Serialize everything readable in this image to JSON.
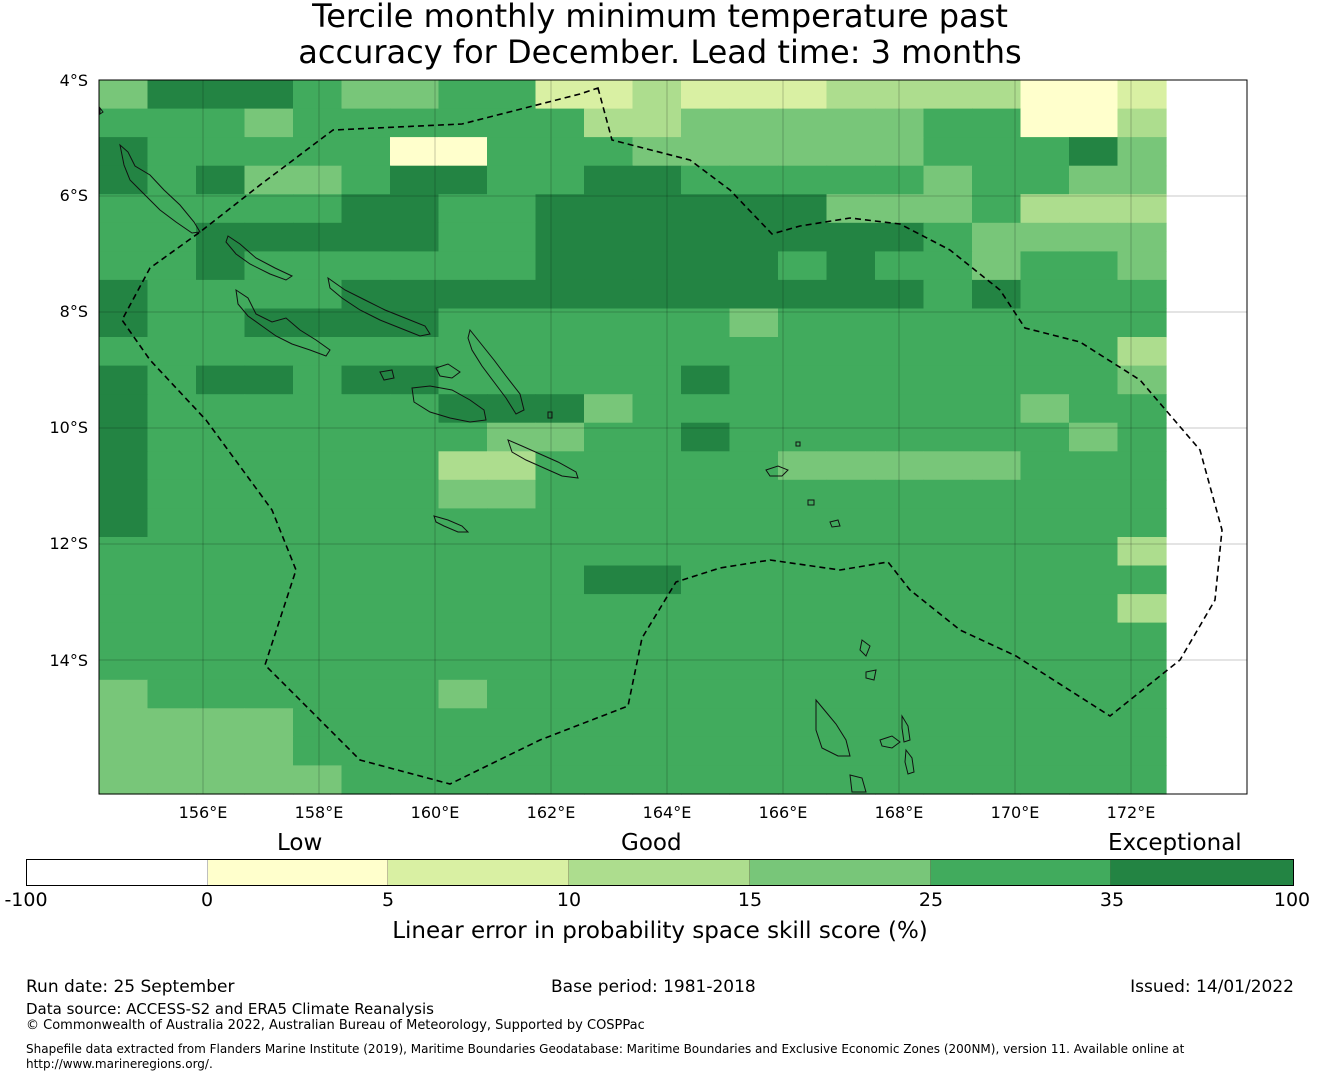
{
  "title": {
    "line1": "Tercile monthly minimum temperature past",
    "line2": "accuracy for December. Lead time: 3 months"
  },
  "map": {
    "lat_labels": [
      "4°S",
      "6°S",
      "8°S",
      "10°S",
      "12°S",
      "14°S"
    ],
    "lon_labels": [
      "156°E",
      "158°E",
      "160°E",
      "162°E",
      "164°E",
      "166°E",
      "168°E",
      "170°E",
      "172°E"
    ],
    "lon_range": [
      154.2,
      174.0
    ],
    "lat_range": [
      -4.0,
      -16.3
    ],
    "cell_colors": [
      "#ffffcc",
      "#d9f0a3",
      "#addd8e",
      "#78c679",
      "#41ab5d",
      "#238443"
    ],
    "legend_ref": "grid of skill-score cells coloured by the legend below"
  },
  "colorbar": {
    "category_labels": [
      "Low",
      "Good",
      "Exceptional"
    ],
    "ticks": [
      "-100",
      "0",
      "5",
      "10",
      "15",
      "25",
      "35",
      "100"
    ],
    "colors": [
      "#ffffff",
      "#ffffcc",
      "#d9f0a3",
      "#addd8e",
      "#78c679",
      "#41ab5d",
      "#238443"
    ],
    "title": "Linear error in probability space skill score (%)"
  },
  "footer": {
    "run_date": "Run date: 25 September",
    "base_period": "Base period: 1981-2018",
    "issued": "Issued: 14/01/2022",
    "data_source": "Data source: ACCESS-S2 and ERA5 Climate Reanalysis",
    "copyright": "© Commonwealth of Australia 2022, Australian Bureau of Meteorology, Supported by COSPPac",
    "shapefile_line1": "Shapefile data extracted from Flanders Marine Institute (2019), Maritime Boundaries Geodatabase: Maritime Boundaries and Exclusive Economic Zones (200NM), version 11. Available online at",
    "shapefile_line2": "http://www.marineregions.org/."
  }
}
